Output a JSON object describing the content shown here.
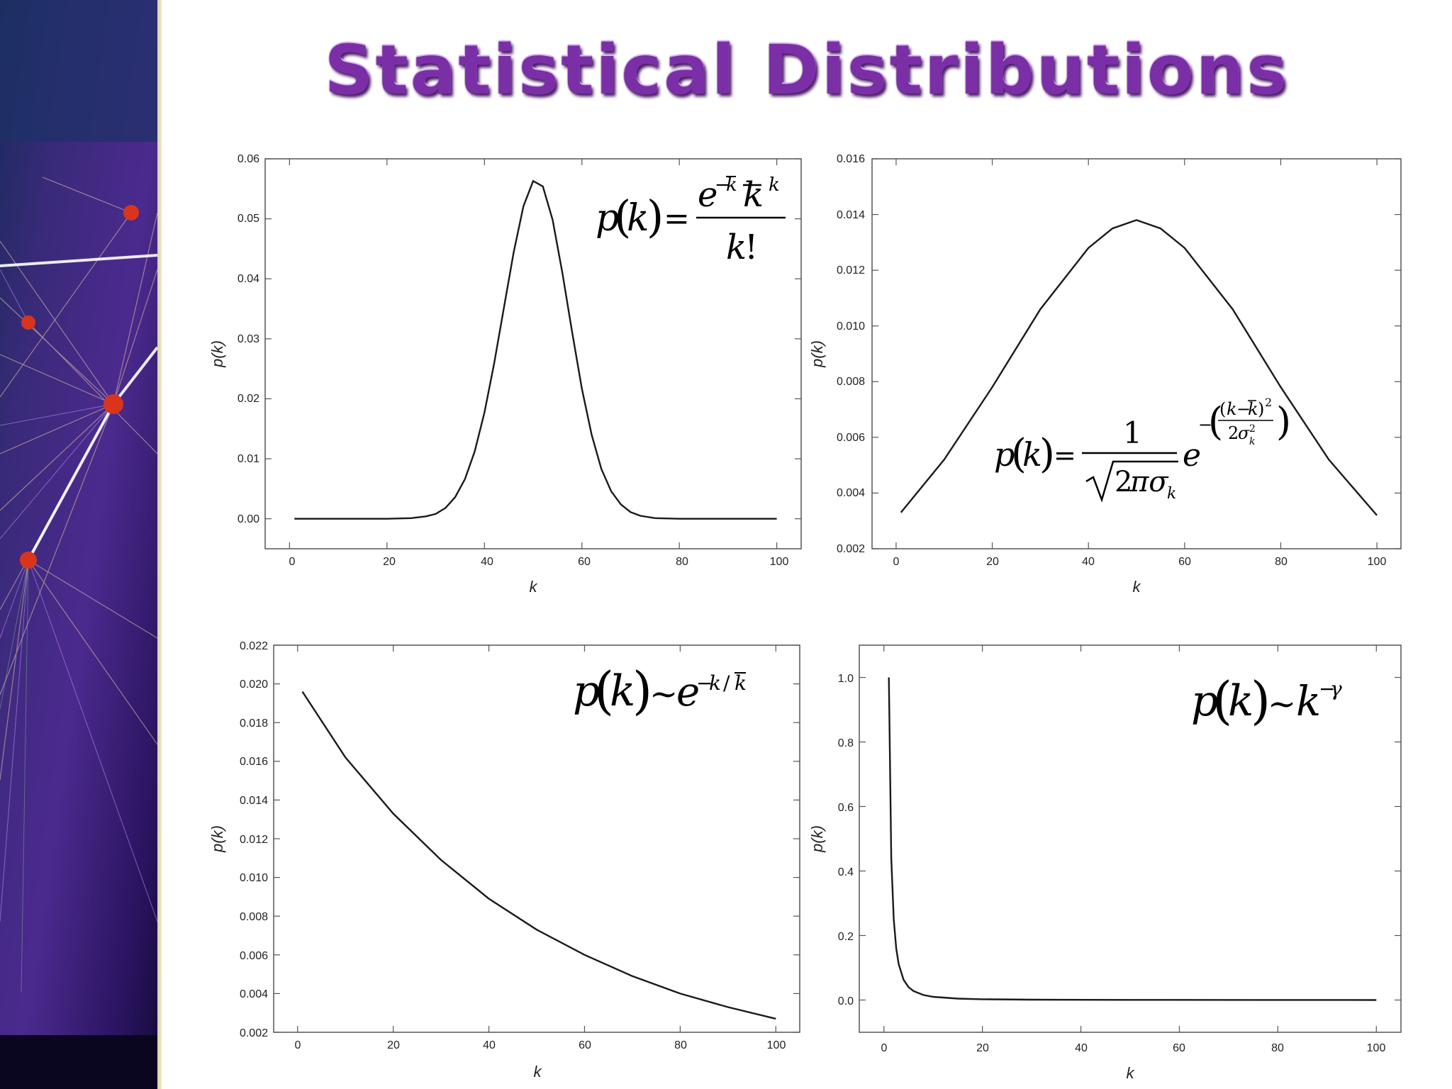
{
  "slide": {
    "title": "Statistical Distributions"
  },
  "chart_data": [
    {
      "type": "line",
      "name": "poisson",
      "xlabel": "k",
      "ylabel": "p(k)",
      "xlim": [
        -5,
        105
      ],
      "ylim": [
        -0.005,
        0.06
      ],
      "xticks": [
        0,
        20,
        40,
        60,
        80,
        100
      ],
      "yticks": [
        "0.00",
        "0.01",
        "0.02",
        "0.03",
        "0.04",
        "0.05",
        "0.06"
      ],
      "x": [
        1,
        20,
        25,
        28,
        30,
        32,
        34,
        36,
        38,
        40,
        42,
        44,
        46,
        48,
        50,
        52,
        54,
        56,
        58,
        60,
        62,
        64,
        66,
        68,
        70,
        72,
        75,
        80,
        100
      ],
      "y": [
        0.0,
        0.0,
        0.0001,
        0.0004,
        0.0008,
        0.0018,
        0.0036,
        0.0066,
        0.0112,
        0.0177,
        0.0259,
        0.0352,
        0.0444,
        0.0521,
        0.0563,
        0.0554,
        0.0498,
        0.041,
        0.0311,
        0.0217,
        0.014,
        0.0083,
        0.0046,
        0.0024,
        0.0011,
        0.0005,
        0.0001,
        0.0,
        0.0
      ],
      "formula": "p(k) = e^{-k̄} k̄^k / k!"
    },
    {
      "type": "line",
      "name": "gaussian",
      "xlabel": "k",
      "ylabel": "p(k)",
      "xlim": [
        -5,
        105
      ],
      "ylim": [
        0.002,
        0.016
      ],
      "xticks": [
        0,
        20,
        40,
        60,
        80,
        100
      ],
      "yticks": [
        "0.002",
        "0.004",
        "0.006",
        "0.008",
        "0.010",
        "0.012",
        "0.014",
        "0.016"
      ],
      "x": [
        1,
        10,
        20,
        30,
        40,
        45,
        50,
        55,
        60,
        70,
        80,
        90,
        100
      ],
      "y": [
        0.0033,
        0.0052,
        0.0078,
        0.0106,
        0.0128,
        0.0135,
        0.0138,
        0.0135,
        0.0128,
        0.0106,
        0.0078,
        0.0052,
        0.0032
      ],
      "formula": "p(k) = 1/√(2πσ_k) · e^{-((k-k̄)²/(2σ_k²))}"
    },
    {
      "type": "line",
      "name": "exponential",
      "xlabel": "k",
      "ylabel": "p(k)",
      "xlim": [
        -5,
        105
      ],
      "ylim": [
        0.002,
        0.022
      ],
      "xticks": [
        0,
        20,
        40,
        60,
        80,
        100
      ],
      "yticks": [
        "0.002",
        "0.004",
        "0.006",
        "0.008",
        "0.010",
        "0.012",
        "0.014",
        "0.016",
        "0.018",
        "0.020",
        "0.022"
      ],
      "x": [
        1,
        10,
        20,
        30,
        40,
        50,
        60,
        70,
        80,
        90,
        100
      ],
      "y": [
        0.0196,
        0.0162,
        0.0133,
        0.0109,
        0.0089,
        0.0073,
        0.006,
        0.0049,
        0.004,
        0.0033,
        0.0027
      ],
      "formula": "p(k) ~ e^{-k/k̄}"
    },
    {
      "type": "line",
      "name": "power-law",
      "xlabel": "k",
      "ylabel": "p(k)",
      "xlim": [
        -5,
        105
      ],
      "ylim": [
        -0.1,
        1.1
      ],
      "xticks": [
        0,
        20,
        40,
        60,
        80,
        100
      ],
      "yticks": [
        "0.0",
        "0.2",
        "0.4",
        "0.6",
        "0.8",
        "1.0"
      ],
      "x": [
        1,
        1.5,
        2,
        2.5,
        3,
        4,
        5,
        6,
        8,
        10,
        15,
        20,
        30,
        50,
        100
      ],
      "y": [
        1.0,
        0.44,
        0.25,
        0.16,
        0.111,
        0.0625,
        0.04,
        0.028,
        0.0156,
        0.01,
        0.0044,
        0.0025,
        0.0011,
        0.0004,
        0.0001
      ],
      "formula": "p(k) ~ k^{-γ}"
    }
  ]
}
